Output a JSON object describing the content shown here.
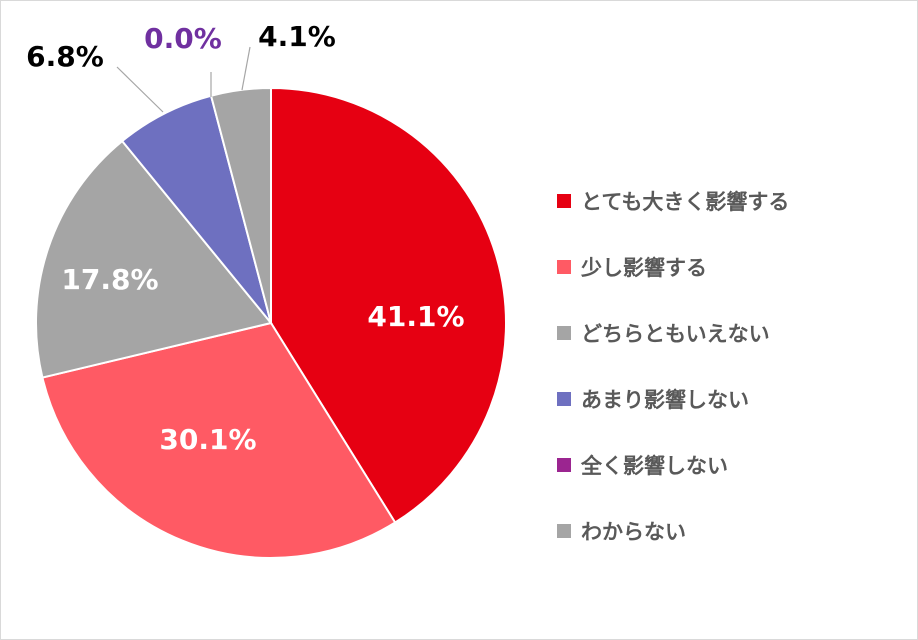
{
  "chart_data": {
    "type": "pie",
    "title": "",
    "legend_position": "right",
    "categories": [
      "とても大きく影響する",
      "少し影響する",
      "どちらともいえない",
      "あまり影響しない",
      "全く影響しない",
      "わからない"
    ],
    "values": [
      41.1,
      30.1,
      17.8,
      6.8,
      0.0,
      4.1
    ],
    "labels": [
      "41.1%",
      "30.1%",
      "17.8%",
      "6.8%",
      "0.0%",
      "4.1%"
    ],
    "colors": [
      "#E60012",
      "#FF5A64",
      "#A5A5A5",
      "#6E70C0",
      "#9B2590",
      "#A5A5A5"
    ],
    "label_colors": [
      "#FFFFFF",
      "#FFFFFF",
      "#FFFFFF",
      "#000000",
      "#7030A0",
      "#000000"
    ]
  }
}
